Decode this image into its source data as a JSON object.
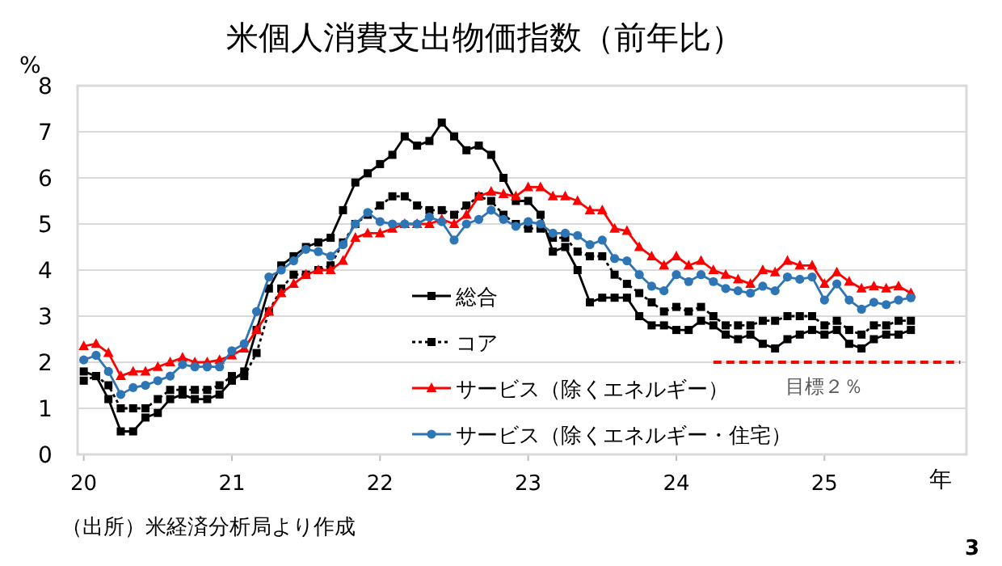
{
  "chart_data": {
    "type": "line",
    "title": "米個人消費支出物価指数（前年比）",
    "ylabel": "%",
    "xlabel": "年",
    "annotations": [
      "目標２％",
      "（出所）米経済分析局より作成",
      "3"
    ],
    "x": [
      "2020-01",
      "2020-02",
      "2020-03",
      "2020-04",
      "2020-05",
      "2020-06",
      "2020-07",
      "2020-08",
      "2020-09",
      "2020-10",
      "2020-11",
      "2020-12",
      "2021-01",
      "2021-02",
      "2021-03",
      "2021-04",
      "2021-05",
      "2021-06",
      "2021-07",
      "2021-08",
      "2021-09",
      "2021-10",
      "2021-11",
      "2021-12",
      "2022-01",
      "2022-02",
      "2022-03",
      "2022-04",
      "2022-05",
      "2022-06",
      "2022-07",
      "2022-08",
      "2022-09",
      "2022-10",
      "2022-11",
      "2022-12",
      "2023-01",
      "2023-02",
      "2023-03",
      "2023-04",
      "2023-05",
      "2023-06",
      "2023-07",
      "2023-08",
      "2023-09",
      "2023-10",
      "2023-11",
      "2023-12",
      "2024-01",
      "2024-02",
      "2024-03",
      "2024-04",
      "2024-05",
      "2024-06",
      "2024-07",
      "2024-08",
      "2024-09",
      "2024-10",
      "2024-11",
      "2024-12",
      "2025-01",
      "2025-02",
      "2025-03",
      "2025-04",
      "2025-05",
      "2025-06",
      "2025-07",
      "2025-08"
    ],
    "series": [
      {
        "name": "総合",
        "color": "#000000",
        "marker": "square",
        "line_style": "solid",
        "values": [
          1.8,
          1.7,
          1.2,
          0.5,
          0.5,
          0.8,
          0.9,
          1.2,
          1.3,
          1.2,
          1.2,
          1.3,
          1.6,
          1.8,
          2.7,
          3.6,
          4.1,
          4.3,
          4.5,
          4.6,
          4.7,
          5.3,
          5.9,
          6.1,
          6.3,
          6.5,
          6.9,
          6.7,
          6.8,
          7.2,
          6.9,
          6.6,
          6.7,
          6.5,
          6.0,
          5.5,
          5.5,
          5.2,
          4.4,
          4.5,
          4.0,
          3.3,
          3.4,
          3.4,
          3.4,
          3.0,
          2.8,
          2.8,
          2.7,
          2.7,
          2.9,
          2.8,
          2.6,
          2.5,
          2.6,
          2.4,
          2.3,
          2.5,
          2.6,
          2.7,
          2.6,
          2.7,
          2.4,
          2.3,
          2.5,
          2.6,
          2.6,
          2.7
        ]
      },
      {
        "name": "コア",
        "color": "#000000",
        "marker": "square",
        "line_style": "dotted",
        "values": [
          1.6,
          1.7,
          1.5,
          1.0,
          1.0,
          1.0,
          1.2,
          1.4,
          1.4,
          1.4,
          1.4,
          1.5,
          1.7,
          1.7,
          2.2,
          3.1,
          3.6,
          3.9,
          3.9,
          4.0,
          4.1,
          4.6,
          5.0,
          5.2,
          5.4,
          5.6,
          5.6,
          5.4,
          5.3,
          5.3,
          5.2,
          5.4,
          5.6,
          5.5,
          5.2,
          5.0,
          4.9,
          4.9,
          4.7,
          4.7,
          4.4,
          4.3,
          4.3,
          3.9,
          3.7,
          3.5,
          3.3,
          3.1,
          3.2,
          3.1,
          3.2,
          3.0,
          2.8,
          2.8,
          2.8,
          2.9,
          2.9,
          3.0,
          3.0,
          3.0,
          2.8,
          2.9,
          2.7,
          2.6,
          2.8,
          2.8,
          2.9,
          2.9
        ]
      },
      {
        "name": "サービス（除くエネルギー）",
        "color": "#ff0000",
        "marker": "triangle",
        "line_style": "solid",
        "values": [
          2.35,
          2.4,
          2.2,
          1.7,
          1.8,
          1.8,
          1.9,
          2.0,
          2.1,
          2.0,
          2.0,
          2.05,
          2.15,
          2.3,
          2.7,
          3.1,
          3.5,
          3.7,
          3.9,
          4.0,
          4.0,
          4.2,
          4.7,
          4.8,
          4.8,
          4.9,
          5.0,
          5.0,
          5.0,
          5.1,
          5.0,
          5.2,
          5.6,
          5.7,
          5.65,
          5.6,
          5.8,
          5.8,
          5.6,
          5.6,
          5.5,
          5.3,
          5.3,
          4.9,
          4.85,
          4.5,
          4.3,
          4.1,
          4.3,
          4.1,
          4.2,
          4.0,
          3.9,
          3.8,
          3.7,
          4.0,
          3.95,
          4.2,
          4.1,
          4.1,
          3.7,
          3.95,
          3.75,
          3.6,
          3.65,
          3.6,
          3.65,
          3.5
        ]
      },
      {
        "name": "サービス（除くエネルギー・住宅）",
        "color": "#2e75b6",
        "marker": "circle",
        "line_style": "solid",
        "values": [
          2.05,
          2.15,
          1.8,
          1.3,
          1.45,
          1.5,
          1.6,
          1.7,
          1.95,
          1.9,
          1.9,
          1.9,
          2.25,
          2.4,
          3.1,
          3.85,
          4.0,
          4.2,
          4.45,
          4.4,
          4.3,
          4.55,
          5.0,
          5.25,
          5.05,
          5.0,
          5.0,
          5.0,
          5.15,
          5.05,
          4.65,
          5.0,
          5.1,
          5.3,
          5.1,
          4.95,
          5.05,
          5.0,
          4.8,
          4.8,
          4.75,
          4.55,
          4.65,
          4.25,
          4.2,
          3.9,
          3.65,
          3.55,
          3.9,
          3.75,
          3.9,
          3.75,
          3.6,
          3.55,
          3.5,
          3.65,
          3.55,
          3.85,
          3.8,
          3.85,
          3.35,
          3.7,
          3.35,
          3.15,
          3.3,
          3.25,
          3.35,
          3.4
        ]
      },
      {
        "color": "#ff0000",
        "marker": "none",
        "line_style": "dashed",
        "x": [
          "2024-04",
          "2025-12"
        ],
        "values": [
          2,
          2
        ]
      }
    ],
    "xlim": [
      "2019-12-16",
      "2025-12-16"
    ],
    "xticks": [
      {
        "value": "2020-01",
        "label": "20"
      },
      {
        "value": "2021-01",
        "label": "21"
      },
      {
        "value": "2022-01",
        "label": "22"
      },
      {
        "value": "2023-01",
        "label": "23"
      },
      {
        "value": "2024-01",
        "label": "24"
      },
      {
        "value": "2025-01",
        "label": "25"
      }
    ],
    "ylim": [
      0,
      8
    ],
    "yticks": [
      0,
      1,
      2,
      3,
      4,
      5,
      6,
      7,
      8
    ],
    "grid": "y",
    "legend": "bottom"
  }
}
